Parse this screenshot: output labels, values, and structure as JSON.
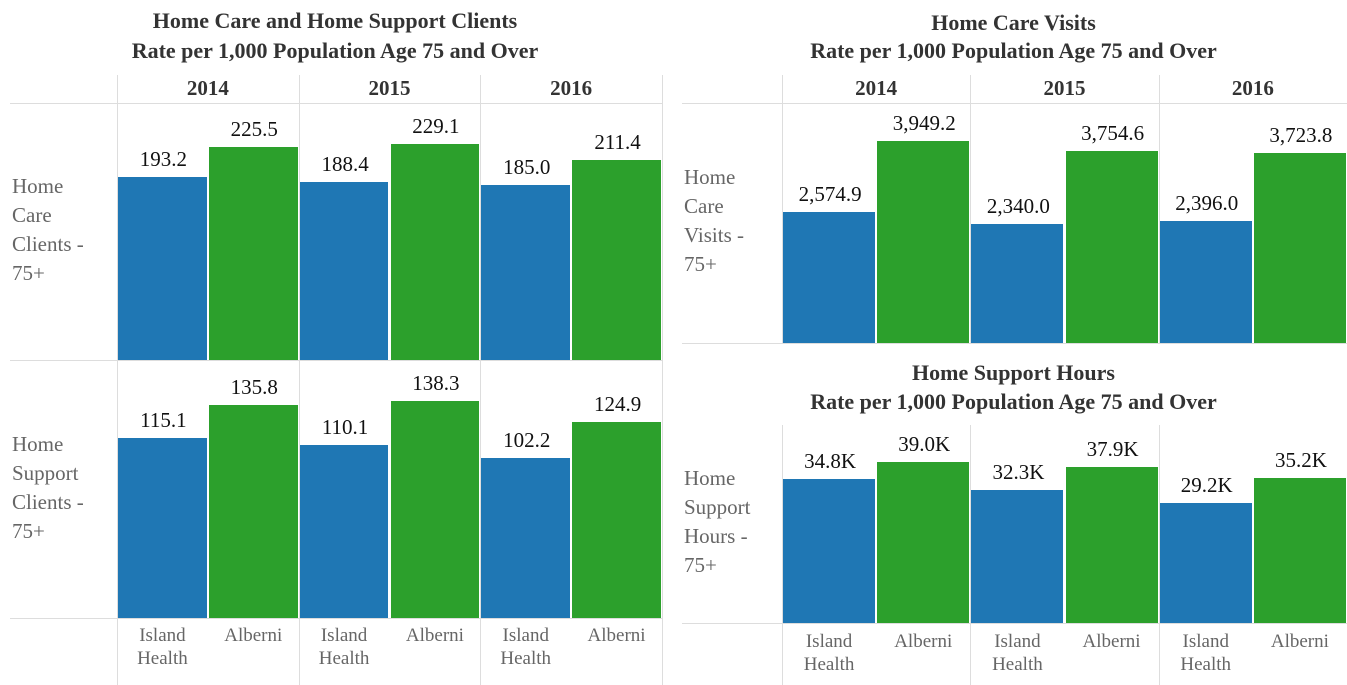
{
  "chart_data": [
    {
      "type": "bar",
      "title": "Home Care and Home Support Clients",
      "subtitle": "Rate per 1,000 Population Age 75 and Over",
      "groups": [
        "2014",
        "2015",
        "2016"
      ],
      "categories": [
        "Island Health",
        "Alberni"
      ],
      "colors": [
        "#1f77b4",
        "#2ca02c"
      ],
      "rows": [
        {
          "label": "Home Care Clients - 75+",
          "ylim": [
            0,
            272
          ],
          "values": [
            [
              193.2,
              225.5
            ],
            [
              188.4,
              229.1
            ],
            [
              185.0,
              211.4
            ]
          ],
          "value_labels": [
            [
              "193.2",
              "225.5"
            ],
            [
              "188.4",
              "229.1"
            ],
            [
              "185.0",
              "211.4"
            ]
          ]
        },
        {
          "label": "Home Support Clients - 75+",
          "ylim": [
            0,
            164
          ],
          "values": [
            [
              115.1,
              135.8
            ],
            [
              110.1,
              138.3
            ],
            [
              102.2,
              124.9
            ]
          ]
        }
      ]
    },
    {
      "type": "bar",
      "title": "Home Care Visits",
      "subtitle": "Rate per 1,000 Population Age 75 and Over",
      "groups": [
        "2014",
        "2015",
        "2016"
      ],
      "colors": [
        "#1f77b4",
        "#2ca02c"
      ],
      "rows": [
        {
          "label": "Home Care Visits - 75+",
          "ylim": [
            0,
            4700
          ],
          "values": [
            [
              2574.9,
              3949.2
            ],
            [
              2340.0,
              3754.6
            ],
            [
              2396.0,
              3723.8
            ]
          ],
          "value_labels": [
            [
              "2,574.9",
              "3,949.2"
            ],
            [
              "2,340.0",
              "3,754.6"
            ],
            [
              "2,396.0",
              "3,723.8"
            ]
          ]
        }
      ]
    },
    {
      "type": "bar",
      "title": "Home Support Hours",
      "subtitle": "Rate per 1,000 Population Age 75 and Over",
      "categories": [
        "Island Health",
        "Alberni"
      ],
      "colors": [
        "#1f77b4",
        "#2ca02c"
      ],
      "rows": [
        {
          "label": "Home Support Hours - 75+",
          "ylim": [
            0,
            48000
          ],
          "values": [
            [
              34800,
              39000
            ],
            [
              32300,
              37900
            ],
            [
              29200,
              35200
            ]
          ],
          "value_labels": [
            [
              "34.8K",
              "39.0K"
            ],
            [
              "32.3K",
              "37.9K"
            ],
            [
              "29.2K",
              "35.2K"
            ]
          ]
        }
      ]
    }
  ]
}
